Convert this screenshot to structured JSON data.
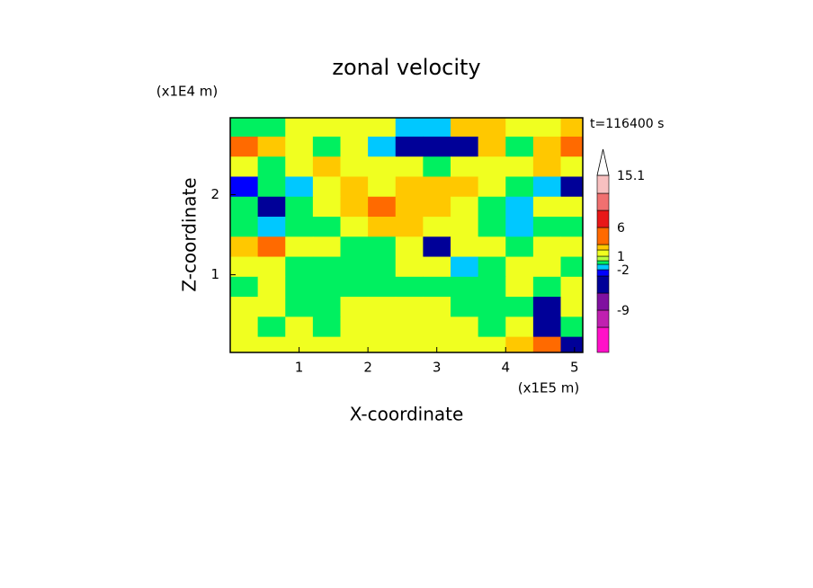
{
  "chart_data": {
    "type": "contour",
    "title": "zonal velocity",
    "xlabel": "X-coordinate",
    "ylabel": "Z-coordinate",
    "x_unit": "(x1E5 m)",
    "y_unit": "(x1E4 m)",
    "annotation": "t=116400 s",
    "xlim": [
      0,
      5.12
    ],
    "ylim": [
      0.03,
      2.96
    ],
    "xticks": [
      1,
      2,
      3,
      4,
      5
    ],
    "yticks": [
      1,
      2
    ],
    "x": [
      0.2,
      0.6,
      1.0,
      1.4,
      1.8,
      2.2,
      2.6,
      3.0,
      3.4,
      3.8,
      4.2,
      4.6,
      5.0
    ],
    "y": [
      2.85,
      2.6,
      2.35,
      2.1,
      1.85,
      1.6,
      1.35,
      1.1,
      0.85,
      0.6,
      0.35,
      0.1
    ],
    "z": [
      [
        -0.5,
        -0.5,
        1.5,
        1.5,
        1.5,
        1.5,
        -1.5,
        -1.5,
        2.5,
        2.5,
        1.5,
        1.5,
        2.5
      ],
      [
        4,
        2.5,
        1.5,
        -0.5,
        1.5,
        -1.5,
        -4,
        -4,
        -4,
        2.5,
        -0.5,
        2.5,
        4
      ],
      [
        1.5,
        -0.5,
        1.5,
        2.5,
        1.5,
        1.5,
        1.5,
        -0.5,
        1.5,
        1.5,
        1.5,
        2.5,
        1.5
      ],
      [
        -2.5,
        -0.5,
        -1.5,
        1.5,
        2.5,
        1.5,
        2.5,
        2.5,
        2.5,
        1.5,
        -0.5,
        -1.5,
        -4
      ],
      [
        -0.5,
        -4,
        -0.5,
        1.5,
        2.5,
        4,
        2.5,
        2.5,
        1.5,
        -0.5,
        -1.5,
        1.5,
        1.5
      ],
      [
        -0.5,
        -1.5,
        -0.5,
        -0.5,
        1.5,
        2.5,
        2.5,
        1.5,
        1.5,
        -0.5,
        -1.5,
        -0.5,
        -0.5
      ],
      [
        2.5,
        4,
        1.5,
        1.5,
        -0.5,
        -0.5,
        1.5,
        -4,
        1.5,
        1.5,
        -0.5,
        1.5,
        1.5
      ],
      [
        1.5,
        1.5,
        -0.5,
        -0.5,
        -0.5,
        -0.5,
        1.5,
        1.5,
        -1.5,
        -0.5,
        1.5,
        1.5,
        -0.5
      ],
      [
        -0.5,
        1.5,
        -0.5,
        -0.5,
        -0.5,
        -0.5,
        -0.5,
        -0.5,
        -0.5,
        -0.5,
        1.5,
        -0.5,
        1.5
      ],
      [
        1.5,
        1.5,
        -0.5,
        -0.5,
        1.5,
        1.5,
        1.5,
        1.5,
        -0.5,
        -0.5,
        -0.5,
        -4,
        1.5
      ],
      [
        1.5,
        -0.5,
        1.5,
        -0.5,
        1.5,
        1.5,
        1.5,
        1.5,
        1.5,
        -0.5,
        1.5,
        -4,
        -0.5
      ],
      [
        1.5,
        1.5,
        1.5,
        1.5,
        1.5,
        1.5,
        1.5,
        1.5,
        1.5,
        1.5,
        2.5,
        4,
        -4
      ]
    ],
    "levels": [
      -15,
      -12,
      -9,
      -6,
      -3,
      -2,
      -1,
      0,
      1,
      2,
      3,
      6,
      9,
      12,
      15.1
    ],
    "colors": [
      "#ff10c8",
      "#c020b0",
      "#8010a0",
      "#000098",
      "#0000ff",
      "#00c8ff",
      "#00f060",
      "#b8ff40",
      "#f0ff20",
      "#ffc800",
      "#ff6a00",
      "#e81818",
      "#f07070",
      "#f8c0c0"
    ],
    "colorbar_ticks": [
      -9,
      -2,
      1,
      6,
      15.1
    ]
  }
}
